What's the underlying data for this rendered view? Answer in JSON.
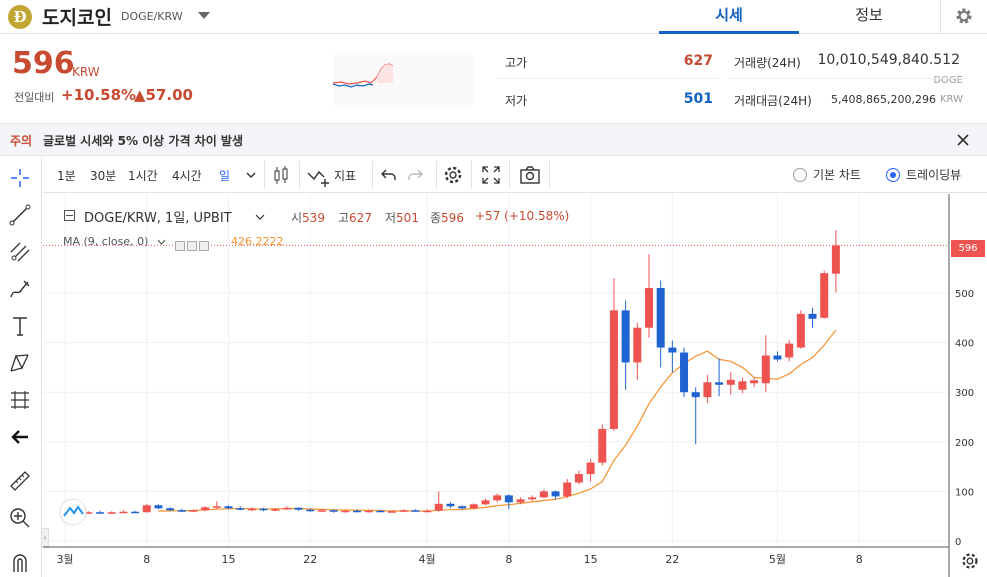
{
  "header": {
    "coin_logo": "Đ",
    "coin_name": "도지코인",
    "pair": "DOGE/KRW",
    "tabs": [
      {
        "label": "시세",
        "active": true
      },
      {
        "label": "정보",
        "active": false
      }
    ],
    "settings_icon": "gear-icon"
  },
  "price": {
    "value": "596",
    "unit": "KRW",
    "change_label": "전일대비",
    "change_rate": "+10.58%",
    "change_amount": "▲57.00",
    "color_up": "#c84a31",
    "color_down": "#1261c4"
  },
  "stats": {
    "high_label": "고가",
    "high_value": "627",
    "low_label": "저가",
    "low_value": "501",
    "volume_label": "거래량(24H)",
    "volume_value": "10,010,549,840.512",
    "volume_unit": "DOGE",
    "amount_label": "거래대금(24H)",
    "amount_value": "5,408,865,200,296",
    "amount_unit": "KRW"
  },
  "notice": {
    "tag": "주의",
    "text": "글로벌 시세와 5% 이상 가격 차이 발생"
  },
  "toolbar": {
    "timeframes": [
      {
        "label": "1분",
        "active": false
      },
      {
        "label": "30분",
        "active": false
      },
      {
        "label": "1시간",
        "active": false
      },
      {
        "label": "4시간",
        "active": false
      },
      {
        "label": "일",
        "active": true
      }
    ],
    "indicator_label": "지표",
    "chart_modes": [
      {
        "label": "기본 차트",
        "selected": false
      },
      {
        "label": "트레이딩뷰",
        "selected": true
      }
    ]
  },
  "left_tools": [
    "crosshair-icon",
    "trend-line-icon",
    "fib-icon",
    "brush-icon",
    "text-icon",
    "pattern-icon",
    "measure-icon",
    "back-arrow-icon",
    "ruler-icon",
    "zoom-in-icon",
    "magnet-icon"
  ],
  "legend": {
    "title": "DOGE/KRW, 1일, UPBIT",
    "open_key": "시",
    "open": "539",
    "high_key": "고",
    "high": "627",
    "low_key": "저",
    "low": "501",
    "close_key": "종",
    "close": "596",
    "change": "+57 (+10.58%)",
    "ma_label": "MA (9, close, 0)",
    "ma_value": "426.2222",
    "current_price_tag": "596"
  },
  "chart_data": {
    "type": "candlestick",
    "up_color": "#ef5350",
    "down_color": "#1e63d0",
    "ma_color": "#f5922f",
    "ylim": [
      0,
      600
    ],
    "y_ticks": [
      "0",
      "100",
      "200",
      "300",
      "400",
      "500"
    ],
    "x_ticks": [
      {
        "label": "3월",
        "day": 0
      },
      {
        "label": "8",
        "day": 7
      },
      {
        "label": "15",
        "day": 14
      },
      {
        "label": "22",
        "day": 21
      },
      {
        "label": "4월",
        "day": 31
      },
      {
        "label": "8",
        "day": 38
      },
      {
        "label": "15",
        "day": 45
      },
      {
        "label": "22",
        "day": 52
      },
      {
        "label": "5월",
        "day": 61
      },
      {
        "label": "8",
        "day": 68
      }
    ],
    "candles": [
      {
        "o": 57,
        "h": 60,
        "l": 55,
        "c": 58
      },
      {
        "o": 58,
        "h": 61,
        "l": 56,
        "c": 57
      },
      {
        "o": 57,
        "h": 60,
        "l": 55,
        "c": 58
      },
      {
        "o": 58,
        "h": 61,
        "l": 56,
        "c": 57
      },
      {
        "o": 57,
        "h": 60,
        "l": 55,
        "c": 58
      },
      {
        "o": 58,
        "h": 62,
        "l": 56,
        "c": 59
      },
      {
        "o": 59,
        "h": 61,
        "l": 56,
        "c": 57
      },
      {
        "o": 58,
        "h": 75,
        "l": 57,
        "c": 72
      },
      {
        "o": 72,
        "h": 74,
        "l": 64,
        "c": 66
      },
      {
        "o": 66,
        "h": 68,
        "l": 60,
        "c": 62
      },
      {
        "o": 62,
        "h": 65,
        "l": 58,
        "c": 61
      },
      {
        "o": 61,
        "h": 64,
        "l": 58,
        "c": 62
      },
      {
        "o": 62,
        "h": 70,
        "l": 60,
        "c": 68
      },
      {
        "o": 68,
        "h": 80,
        "l": 64,
        "c": 70
      },
      {
        "o": 70,
        "h": 72,
        "l": 64,
        "c": 66
      },
      {
        "o": 66,
        "h": 70,
        "l": 62,
        "c": 64
      },
      {
        "o": 64,
        "h": 68,
        "l": 60,
        "c": 65
      },
      {
        "o": 65,
        "h": 67,
        "l": 60,
        "c": 62
      },
      {
        "o": 62,
        "h": 66,
        "l": 60,
        "c": 64
      },
      {
        "o": 64,
        "h": 70,
        "l": 62,
        "c": 67
      },
      {
        "o": 67,
        "h": 68,
        "l": 61,
        "c": 63
      },
      {
        "o": 63,
        "h": 66,
        "l": 59,
        "c": 60
      },
      {
        "o": 60,
        "h": 65,
        "l": 58,
        "c": 62
      },
      {
        "o": 62,
        "h": 64,
        "l": 57,
        "c": 59
      },
      {
        "o": 59,
        "h": 63,
        "l": 57,
        "c": 61
      },
      {
        "o": 61,
        "h": 64,
        "l": 58,
        "c": 60
      },
      {
        "o": 60,
        "h": 63,
        "l": 57,
        "c": 61
      },
      {
        "o": 61,
        "h": 63,
        "l": 58,
        "c": 59
      },
      {
        "o": 59,
        "h": 62,
        "l": 57,
        "c": 60
      },
      {
        "o": 60,
        "h": 64,
        "l": 58,
        "c": 62
      },
      {
        "o": 62,
        "h": 64,
        "l": 59,
        "c": 60
      },
      {
        "o": 60,
        "h": 64,
        "l": 58,
        "c": 61
      },
      {
        "o": 61,
        "h": 100,
        "l": 59,
        "c": 75
      },
      {
        "o": 75,
        "h": 78,
        "l": 66,
        "c": 70
      },
      {
        "o": 70,
        "h": 72,
        "l": 64,
        "c": 66
      },
      {
        "o": 66,
        "h": 76,
        "l": 64,
        "c": 74
      },
      {
        "o": 74,
        "h": 86,
        "l": 72,
        "c": 82
      },
      {
        "o": 82,
        "h": 96,
        "l": 78,
        "c": 92
      },
      {
        "o": 92,
        "h": 94,
        "l": 64,
        "c": 78
      },
      {
        "o": 78,
        "h": 88,
        "l": 74,
        "c": 84
      },
      {
        "o": 84,
        "h": 92,
        "l": 80,
        "c": 88
      },
      {
        "o": 88,
        "h": 104,
        "l": 86,
        "c": 100
      },
      {
        "o": 100,
        "h": 102,
        "l": 84,
        "c": 90
      },
      {
        "o": 90,
        "h": 125,
        "l": 86,
        "c": 118
      },
      {
        "o": 118,
        "h": 142,
        "l": 114,
        "c": 135
      },
      {
        "o": 135,
        "h": 165,
        "l": 120,
        "c": 158
      },
      {
        "o": 158,
        "h": 235,
        "l": 152,
        "c": 226
      },
      {
        "o": 226,
        "h": 530,
        "l": 222,
        "c": 465
      },
      {
        "o": 465,
        "h": 485,
        "l": 305,
        "c": 360
      },
      {
        "o": 360,
        "h": 440,
        "l": 325,
        "c": 430
      },
      {
        "o": 430,
        "h": 578,
        "l": 410,
        "c": 510
      },
      {
        "o": 510,
        "h": 525,
        "l": 350,
        "c": 390
      },
      {
        "o": 390,
        "h": 404,
        "l": 340,
        "c": 380
      },
      {
        "o": 380,
        "h": 390,
        "l": 290,
        "c": 300
      },
      {
        "o": 300,
        "h": 310,
        "l": 195,
        "c": 290
      },
      {
        "o": 290,
        "h": 335,
        "l": 278,
        "c": 320
      },
      {
        "o": 320,
        "h": 368,
        "l": 292,
        "c": 315
      },
      {
        "o": 315,
        "h": 340,
        "l": 295,
        "c": 325
      },
      {
        "o": 305,
        "h": 330,
        "l": 298,
        "c": 322
      },
      {
        "o": 318,
        "h": 328,
        "l": 310,
        "c": 324
      },
      {
        "o": 318,
        "h": 415,
        "l": 300,
        "c": 374
      },
      {
        "o": 374,
        "h": 382,
        "l": 362,
        "c": 366
      },
      {
        "o": 370,
        "h": 405,
        "l": 362,
        "c": 398
      },
      {
        "o": 390,
        "h": 465,
        "l": 388,
        "c": 458
      },
      {
        "o": 458,
        "h": 470,
        "l": 430,
        "c": 448
      },
      {
        "o": 450,
        "h": 545,
        "l": 448,
        "c": 540
      },
      {
        "o": 539,
        "h": 627,
        "l": 501,
        "c": 596
      }
    ]
  }
}
